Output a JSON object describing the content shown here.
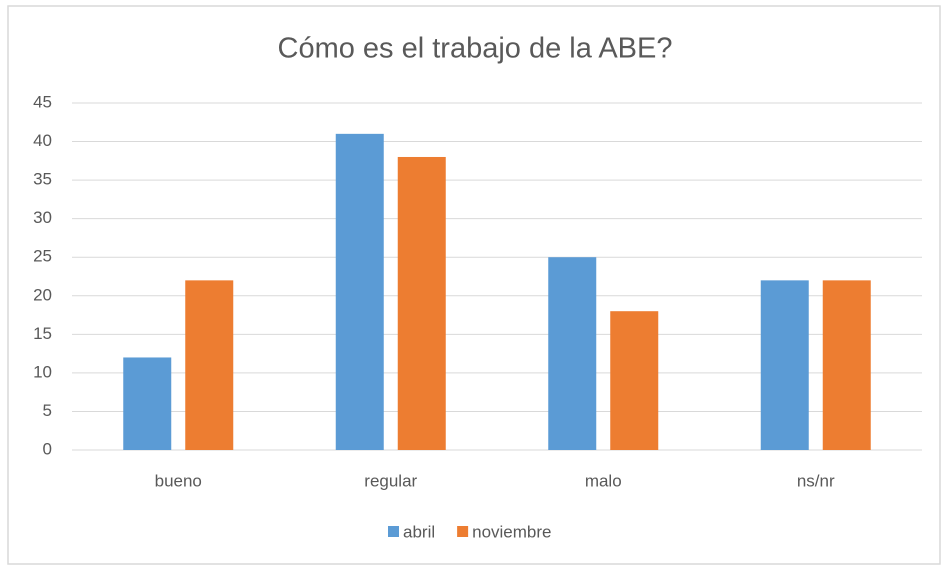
{
  "chart_data": {
    "type": "bar",
    "title": "Cómo es el trabajo de la ABE?",
    "categories": [
      "bueno",
      "regular",
      "malo",
      "ns/nr"
    ],
    "series": [
      {
        "name": "abril",
        "color": "#5b9bd5",
        "values": [
          12,
          41,
          25,
          22
        ]
      },
      {
        "name": "noviembre",
        "color": "#ed7d31",
        "values": [
          22,
          38,
          18,
          22
        ]
      }
    ],
    "ylim": [
      0,
      45
    ],
    "yticks": [
      0,
      5,
      10,
      15,
      20,
      25,
      30,
      35,
      40,
      45
    ],
    "grid": true,
    "legend": "bottom"
  }
}
